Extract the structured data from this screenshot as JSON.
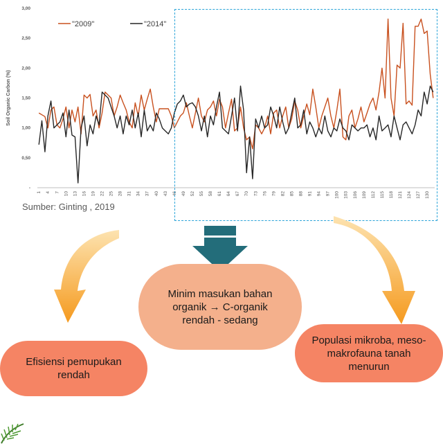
{
  "chart_data": {
    "type": "line",
    "title": "",
    "xlabel": "",
    "ylabel": "Soil Organic Carbon (%)",
    "ylim": [
      0,
      3
    ],
    "y_ticks": [
      "-",
      "0,50",
      "1,00",
      "1,50",
      "2,00",
      "2,50",
      "3,00"
    ],
    "x_ticks": [
      "1",
      "4",
      "7",
      "10",
      "13",
      "16",
      "19",
      "22",
      "25",
      "28",
      "31",
      "34",
      "37",
      "40",
      "43",
      "46",
      "49",
      "52",
      "55",
      "58",
      "61",
      "64",
      "67",
      "70",
      "73",
      "76",
      "79",
      "82",
      "85",
      "88",
      "91",
      "94",
      "97",
      "100",
      "103",
      "106",
      "109",
      "112",
      "115",
      "118",
      "121",
      "124",
      "127",
      "130"
    ],
    "x_count": 132,
    "legend_position": "top-left",
    "series": [
      {
        "name": "\"2009\"",
        "color": "#c8501e",
        "values": [
          1.25,
          1.22,
          1.19,
          1.0,
          1.3,
          1.35,
          1.05,
          1.0,
          1.15,
          1.35,
          1.0,
          1.3,
          1.1,
          1.35,
          0.9,
          1.55,
          1.5,
          1.56,
          1.2,
          1.3,
          1.0,
          1.25,
          1.6,
          1.55,
          1.5,
          1.2,
          1.35,
          1.55,
          1.42,
          1.3,
          1.1,
          1.0,
          1.42,
          1.2,
          1.55,
          1.3,
          1.48,
          1.65,
          1.35,
          1.1,
          1.32,
          1.32,
          1.32,
          1.32,
          1.2,
          1.0,
          1.1,
          1.2,
          1.25,
          1.42,
          1.2,
          1.0,
          1.25,
          1.5,
          1.2,
          1.1,
          1.3,
          1.35,
          1.45,
          1.2,
          1.48,
          1.35,
          1.0,
          1.25,
          1.48,
          0.95,
          1.0,
          1.35,
          1.0,
          0.8,
          0.85,
          0.65,
          1.05,
          1.0,
          0.9,
          1.0,
          1.2,
          0.9,
          1.25,
          1.3,
          1.0,
          1.2,
          1.35,
          1.0,
          1.15,
          1.45,
          1.3,
          1.0,
          1.2,
          1.4,
          1.22,
          1.65,
          1.35,
          1.0,
          1.2,
          1.35,
          1.5,
          1.2,
          1.0,
          1.3,
          1.65,
          0.85,
          0.8,
          1.2,
          1.3,
          1.0,
          1.15,
          1.35,
          1.1,
          1.25,
          1.4,
          1.5,
          1.3,
          1.6,
          2.0,
          1.5,
          2.82,
          1.5,
          1.2,
          2.05,
          2.0,
          2.75,
          1.4,
          1.45,
          1.38,
          2.7,
          2.7,
          2.82,
          2.58,
          2.62,
          1.9,
          1.5
        ],
        "note": "",
        "_pad": []
      },
      {
        "name": "\"2014\"",
        "color": "#262626",
        "values": [
          0.72,
          1.12,
          0.6,
          1.2,
          1.45,
          1.0,
          1.05,
          1.1,
          1.25,
          0.85,
          1.3,
          0.88,
          0.85,
          0.08,
          1.0,
          1.2,
          0.7,
          1.05,
          0.9,
          1.2,
          1.05,
          1.6,
          1.55,
          1.5,
          1.35,
          1.2,
          1.0,
          1.2,
          0.9,
          1.2,
          1.05,
          1.3,
          1.0,
          1.25,
          0.85,
          1.3,
          0.95,
          1.05,
          0.95,
          1.25,
          1.15,
          1.0,
          0.95,
          0.9,
          1.0,
          1.25,
          1.4,
          1.45,
          1.55,
          1.35,
          1.4,
          1.42,
          1.35,
          1.2,
          0.95,
          1.2,
          0.85,
          1.2,
          1.05,
          1.35,
          1.6,
          1.0,
          0.95,
          0.9,
          1.2,
          1.5,
          0.95,
          1.7,
          1.3,
          0.25,
          0.85,
          0.15,
          1.15,
          1.0,
          1.2,
          1.0,
          1.05,
          1.35,
          1.2,
          1.0,
          1.35,
          1.1,
          0.9,
          1.0,
          1.25,
          1.5,
          1.0,
          1.05,
          1.3,
          0.9,
          1.1,
          1.0,
          0.85,
          1.0,
          0.9,
          1.2,
          0.95,
          0.85,
          1.0,
          0.95,
          1.15,
          1.0,
          0.95,
          0.8,
          1.05,
          1.0,
          0.95,
          1.0,
          1.0,
          1.05,
          0.85,
          1.0,
          0.8,
          1.2,
          0.95,
          1.0,
          1.05,
          0.85,
          1.2,
          1.0,
          0.8,
          1.05,
          1.1,
          1.0,
          0.9,
          1.05,
          1.3,
          1.2,
          1.6,
          1.4,
          1.7,
          1.6
        ]
      }
    ],
    "annotations": []
  },
  "source_text": "Sumber: Ginting , 2019",
  "bubbles": {
    "center": "Minim masukan bahan organik → C-organik rendah - sedang",
    "left": "Efisiensi pemupukan rendah",
    "right": "Populasi mikroba, meso-makrofauna tanah menurun"
  },
  "colors": {
    "highlight": "#29a3d8",
    "arrow_center": "#236d7a",
    "arrow_side": "#f59a1e",
    "bubble_center": "#f4b08c",
    "bubble_side": "#f58464"
  }
}
